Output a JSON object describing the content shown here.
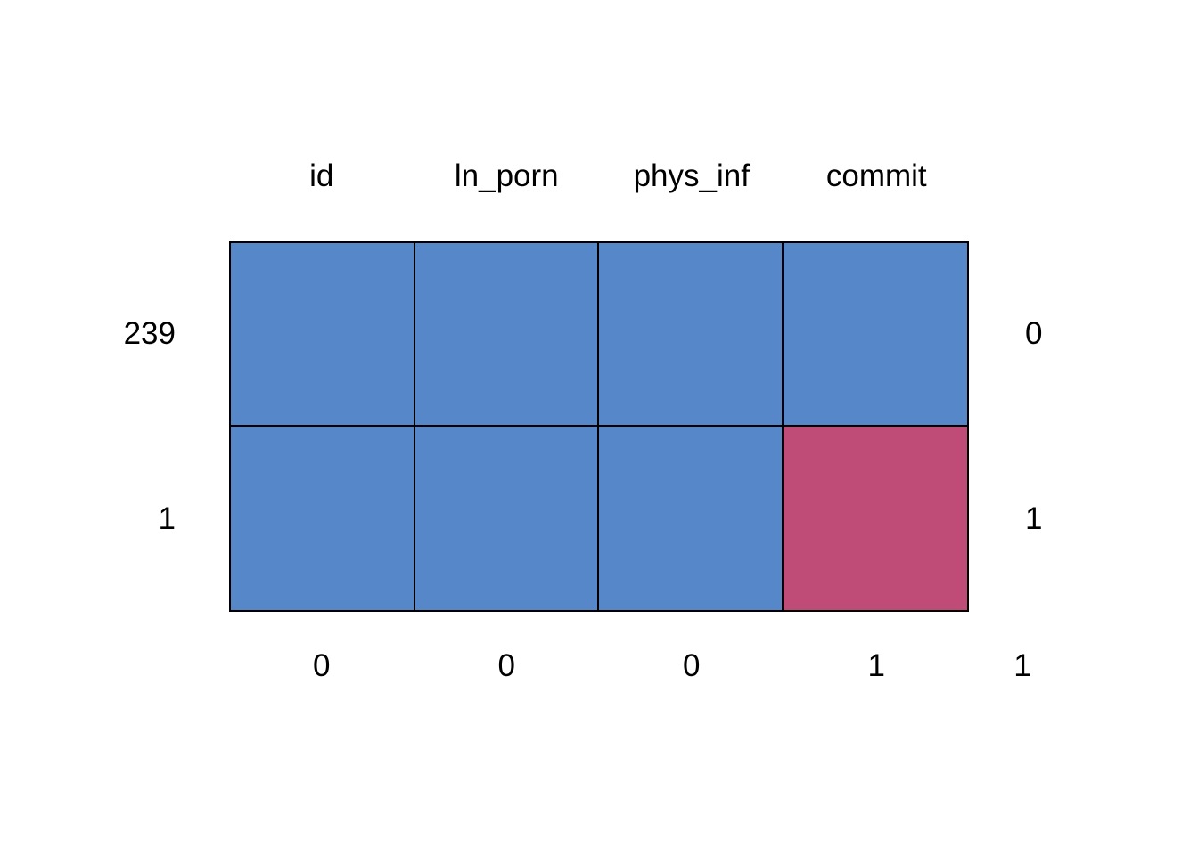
{
  "chart_data": {
    "type": "heatmap",
    "variant": "missing-data-pattern",
    "title": "",
    "columns": [
      "id",
      "ln_porn",
      "phys_inf",
      "commit"
    ],
    "rows": [
      {
        "count_label": "239",
        "pattern": [
          1,
          1,
          1,
          1
        ],
        "missing_label": "0"
      },
      {
        "count_label": "1",
        "pattern": [
          1,
          1,
          1,
          0
        ],
        "missing_label": "1"
      }
    ],
    "column_missing_labels": [
      "0",
      "0",
      "0",
      "1"
    ],
    "total_missing_label": "1",
    "cell_encoding": {
      "1": "observed",
      "0": "missing"
    },
    "layout_hints": {
      "legend": "none",
      "gridlines": "off",
      "axis_labels": "none"
    },
    "colors": {
      "observed": "#5687C8",
      "missing": "#BF4C77",
      "grid_line": "#000000",
      "background": "#FFFFFF",
      "text": "#000000"
    }
  }
}
